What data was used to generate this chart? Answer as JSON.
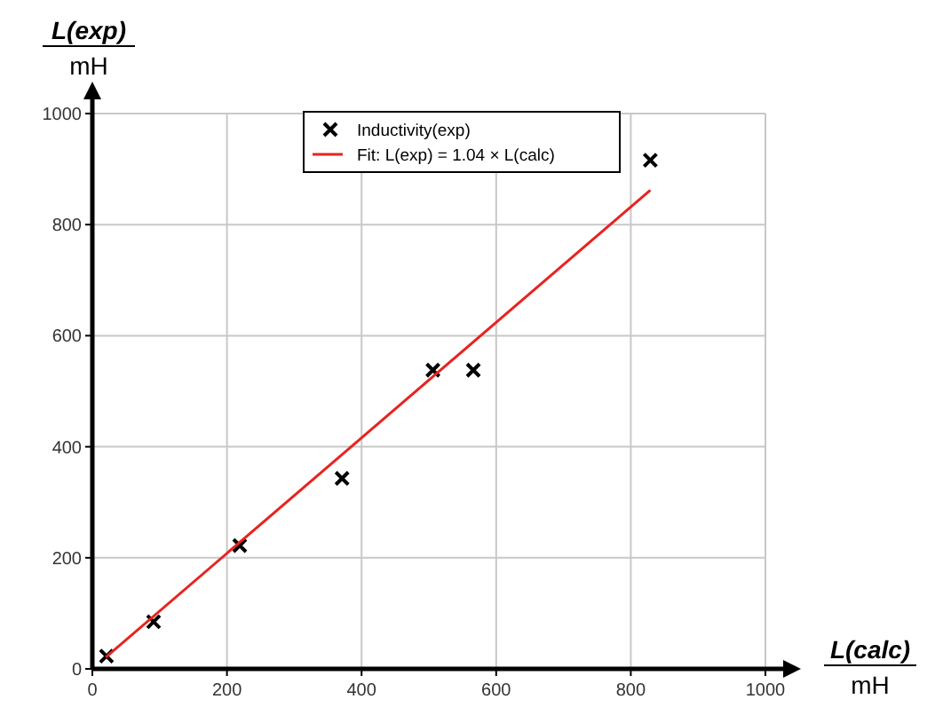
{
  "chart_data": {
    "type": "scatter",
    "xlabel": "L(calc)\nmH",
    "ylabel": "L(exp)\nmH",
    "xlim": [
      0,
      1000
    ],
    "ylim": [
      0,
      1000
    ],
    "xticks": [
      0,
      200,
      400,
      600,
      800,
      1000
    ],
    "yticks": [
      0,
      200,
      400,
      600,
      800,
      1000
    ],
    "grid": true,
    "legend": "top",
    "marker": "cross",
    "series": [
      {
        "name": "Inductivity(exp)",
        "color": "#000000",
        "x": [
          21,
          91,
          219,
          371,
          506,
          566,
          829
        ],
        "values": [
          23,
          85,
          222,
          343,
          538,
          538,
          916
        ]
      },
      {
        "name": "Fit: L(exp) = 1.04 × L(calc)",
        "type": "line",
        "color": "#e8231e",
        "marker": "none",
        "line_style": "solid",
        "x": [
          20,
          829
        ],
        "values": [
          21,
          862
        ]
      }
    ]
  }
}
